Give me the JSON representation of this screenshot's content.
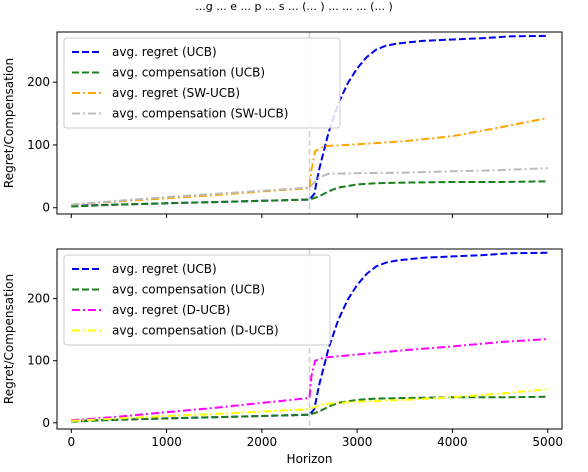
{
  "title": "...g ... e ... p ... s ... (... ) ... ... ... (... )",
  "chart_data": [
    {
      "type": "line",
      "ylabel": "Regret/Compensation",
      "xlabel": "",
      "xlim": [
        -150,
        5150
      ],
      "ylim": [
        -10,
        280
      ],
      "xticks": [
        0,
        1000,
        2000,
        3000,
        4000,
        5000
      ],
      "xtick_labels": [
        "",
        "",
        "",
        "",
        "",
        ""
      ],
      "yticks": [
        0,
        100,
        200
      ],
      "ytick_labels": [
        "0",
        "100",
        "200"
      ],
      "vline_x": 2500,
      "legend_position": "upper-left",
      "series": [
        {
          "name": "avg. regret (UCB)",
          "color": "#0000ee",
          "dash": "dashed",
          "x": [
            0,
            500,
            1000,
            1500,
            2000,
            2500,
            2550,
            2600,
            2700,
            2800,
            2900,
            3000,
            3100,
            3200,
            3300,
            3400,
            3500,
            3700,
            4000,
            4300,
            4600,
            5000
          ],
          "y": [
            3,
            5,
            7,
            9,
            11,
            13,
            22,
            60,
            120,
            165,
            198,
            222,
            240,
            252,
            258,
            261,
            263,
            266,
            268,
            270,
            273,
            274
          ]
        },
        {
          "name": "avg. compensation (UCB)",
          "color": "#1a7f1a",
          "dash": "dashed",
          "x": [
            0,
            500,
            1000,
            1500,
            2000,
            2500,
            2600,
            2700,
            2800,
            3000,
            3200,
            3500,
            4000,
            4500,
            5000
          ],
          "y": [
            2,
            5,
            7,
            9,
            11,
            13,
            18,
            26,
            32,
            37,
            39,
            40,
            41,
            41,
            42
          ]
        },
        {
          "name": "avg. regret (SW-UCB)",
          "color": "#ffa500",
          "dash": "dashdot",
          "x": [
            0,
            500,
            1000,
            1500,
            2000,
            2500,
            2520,
            2560,
            2650,
            3000,
            3500,
            4000,
            4500,
            5000
          ],
          "y": [
            5,
            10,
            15,
            20,
            26,
            31,
            60,
            90,
            98,
            101,
            106,
            114,
            128,
            143
          ]
        },
        {
          "name": "avg. compensation (SW-UCB)",
          "color": "#bbbbbb",
          "dash": "dashdot",
          "x": [
            0,
            500,
            1000,
            1500,
            2000,
            2500,
            2600,
            2700,
            3000,
            3500,
            4000,
            4500,
            5000
          ],
          "y": [
            5,
            11,
            17,
            22,
            27,
            32,
            48,
            54,
            55,
            56,
            58,
            60,
            63
          ]
        }
      ]
    },
    {
      "type": "line",
      "ylabel": "Regret/Compensation",
      "xlabel": "Horizon",
      "xlim": [
        -150,
        5150
      ],
      "ylim": [
        -10,
        280
      ],
      "xticks": [
        0,
        1000,
        2000,
        3000,
        4000,
        5000
      ],
      "xtick_labels": [
        "0",
        "1000",
        "2000",
        "3000",
        "4000",
        "5000"
      ],
      "yticks": [
        0,
        100,
        200
      ],
      "ytick_labels": [
        "0",
        "100",
        "200"
      ],
      "vline_x": 2500,
      "legend_position": "upper-left",
      "series": [
        {
          "name": "avg. regret (UCB)",
          "color": "#0000ee",
          "dash": "dashed",
          "x": [
            0,
            500,
            1000,
            1500,
            2000,
            2500,
            2550,
            2600,
            2700,
            2800,
            2900,
            3000,
            3100,
            3200,
            3300,
            3400,
            3500,
            3700,
            4000,
            4300,
            4600,
            5000
          ],
          "y": [
            3,
            5,
            7,
            9,
            11,
            13,
            22,
            60,
            120,
            165,
            198,
            222,
            240,
            252,
            258,
            261,
            263,
            266,
            268,
            270,
            273,
            274
          ]
        },
        {
          "name": "avg. compensation (UCB)",
          "color": "#1a7f1a",
          "dash": "dashed",
          "x": [
            0,
            500,
            1000,
            1500,
            2000,
            2500,
            2600,
            2700,
            2800,
            3000,
            3200,
            3500,
            4000,
            4500,
            5000
          ],
          "y": [
            2,
            5,
            7,
            9,
            11,
            13,
            18,
            26,
            32,
            37,
            39,
            40,
            41,
            41,
            42
          ]
        },
        {
          "name": "avg. regret (D-UCB)",
          "color": "#ff00ff",
          "dash": "dashdot",
          "x": [
            0,
            500,
            1000,
            1500,
            2000,
            2500,
            2520,
            2560,
            2650,
            3000,
            3500,
            4000,
            4500,
            5000
          ],
          "y": [
            4,
            10,
            17,
            24,
            32,
            40,
            75,
            100,
            105,
            110,
            117,
            123,
            130,
            135
          ]
        },
        {
          "name": "avg. compensation (D-UCB)",
          "color": "#ffff00",
          "dash": "dashdot",
          "x": [
            0,
            500,
            1000,
            1500,
            2000,
            2500,
            2600,
            2700,
            3000,
            3500,
            4000,
            4500,
            5000
          ],
          "y": [
            3,
            7,
            11,
            14,
            18,
            22,
            28,
            31,
            34,
            37,
            41,
            47,
            54
          ]
        }
      ]
    }
  ]
}
